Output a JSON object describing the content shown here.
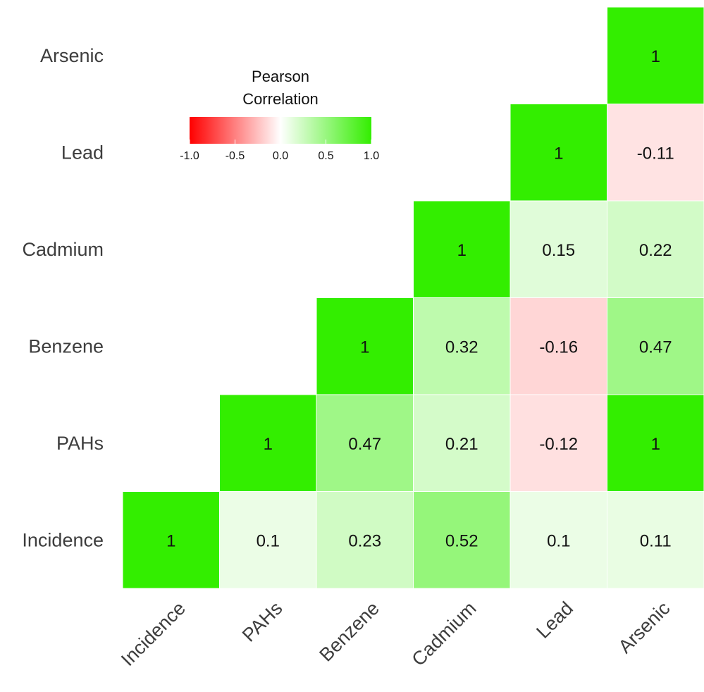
{
  "chart_data": {
    "type": "heatmap",
    "variables": [
      "Incidence",
      "PAHs",
      "Benzene",
      "Cadmium",
      "Lead",
      "Arsenic"
    ],
    "cells": [
      {
        "x": "Incidence",
        "y": "Incidence",
        "value": 1,
        "label": "1"
      },
      {
        "x": "PAHs",
        "y": "Incidence",
        "value": 0.1,
        "label": "0.1"
      },
      {
        "x": "Benzene",
        "y": "Incidence",
        "value": 0.23,
        "label": "0.23"
      },
      {
        "x": "Cadmium",
        "y": "Incidence",
        "value": 0.52,
        "label": "0.52"
      },
      {
        "x": "Lead",
        "y": "Incidence",
        "value": 0.1,
        "label": "0.1"
      },
      {
        "x": "Arsenic",
        "y": "Incidence",
        "value": 0.11,
        "label": "0.11"
      },
      {
        "x": "PAHs",
        "y": "PAHs",
        "value": 1,
        "label": "1"
      },
      {
        "x": "Benzene",
        "y": "PAHs",
        "value": 0.47,
        "label": "0.47"
      },
      {
        "x": "Cadmium",
        "y": "PAHs",
        "value": 0.21,
        "label": "0.21"
      },
      {
        "x": "Lead",
        "y": "PAHs",
        "value": -0.12,
        "label": "-0.12"
      },
      {
        "x": "Arsenic",
        "y": "PAHs",
        "value": 1,
        "label": "1"
      },
      {
        "x": "Benzene",
        "y": "Benzene",
        "value": 1,
        "label": "1"
      },
      {
        "x": "Cadmium",
        "y": "Benzene",
        "value": 0.32,
        "label": "0.32"
      },
      {
        "x": "Lead",
        "y": "Benzene",
        "value": -0.16,
        "label": "-0.16"
      },
      {
        "x": "Arsenic",
        "y": "Benzene",
        "value": 0.47,
        "label": "0.47"
      },
      {
        "x": "Cadmium",
        "y": "Cadmium",
        "value": 1,
        "label": "1"
      },
      {
        "x": "Lead",
        "y": "Cadmium",
        "value": 0.15,
        "label": "0.15"
      },
      {
        "x": "Arsenic",
        "y": "Cadmium",
        "value": 0.22,
        "label": "0.22"
      },
      {
        "x": "Lead",
        "y": "Lead",
        "value": 1,
        "label": "1"
      },
      {
        "x": "Arsenic",
        "y": "Lead",
        "value": -0.11,
        "label": "-0.11"
      },
      {
        "x": "Arsenic",
        "y": "Arsenic",
        "value": 1,
        "label": "1"
      }
    ],
    "legend": {
      "title_lines": [
        "Pearson",
        "Correlation"
      ],
      "range": [
        -1.0,
        1.0
      ],
      "ticks": [
        -1.0,
        -0.5,
        0.0,
        0.5,
        1.0
      ],
      "tick_labels": [
        "-1.0",
        "-0.5",
        "0.0",
        "0.5",
        "1.0"
      ],
      "placement": "top-left"
    },
    "colors": {
      "low": "#ff0000",
      "mid": "#ffffff",
      "high": "#33ee00"
    },
    "xlabel": "",
    "ylabel": "",
    "grid": false
  }
}
